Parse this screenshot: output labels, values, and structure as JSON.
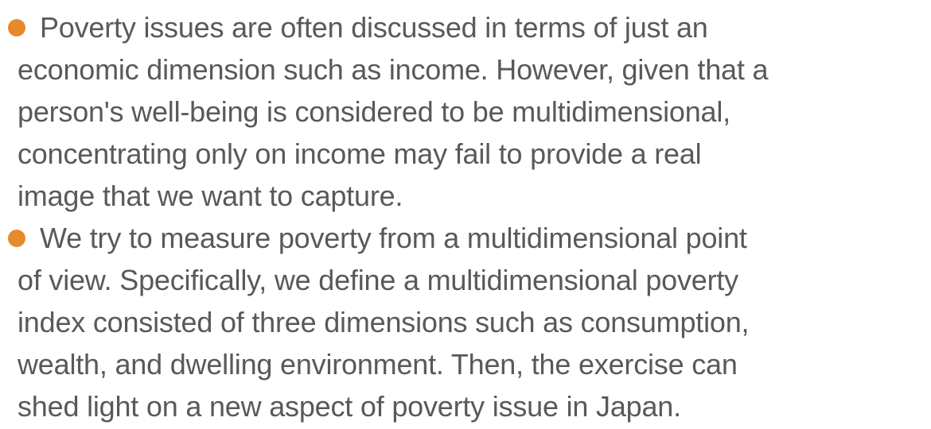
{
  "bullets": [
    {
      "lines": [
        "Poverty issues are often discussed in terms of just an",
        "economic dimension such as income. However, given that a",
        "person's well-being is considered to be multidimensional,",
        "concentrating only on income may fail to provide a real",
        "image that we want to capture."
      ]
    },
    {
      "lines": [
        "We try to measure poverty from a multidimensional point",
        "of view. Specifically, we define a multidimensional poverty",
        "index consisted of three dimensions such as consumption,",
        "wealth, and dwelling environment. Then, the exercise can",
        "shed light on a new aspect of poverty issue in Japan."
      ]
    }
  ]
}
